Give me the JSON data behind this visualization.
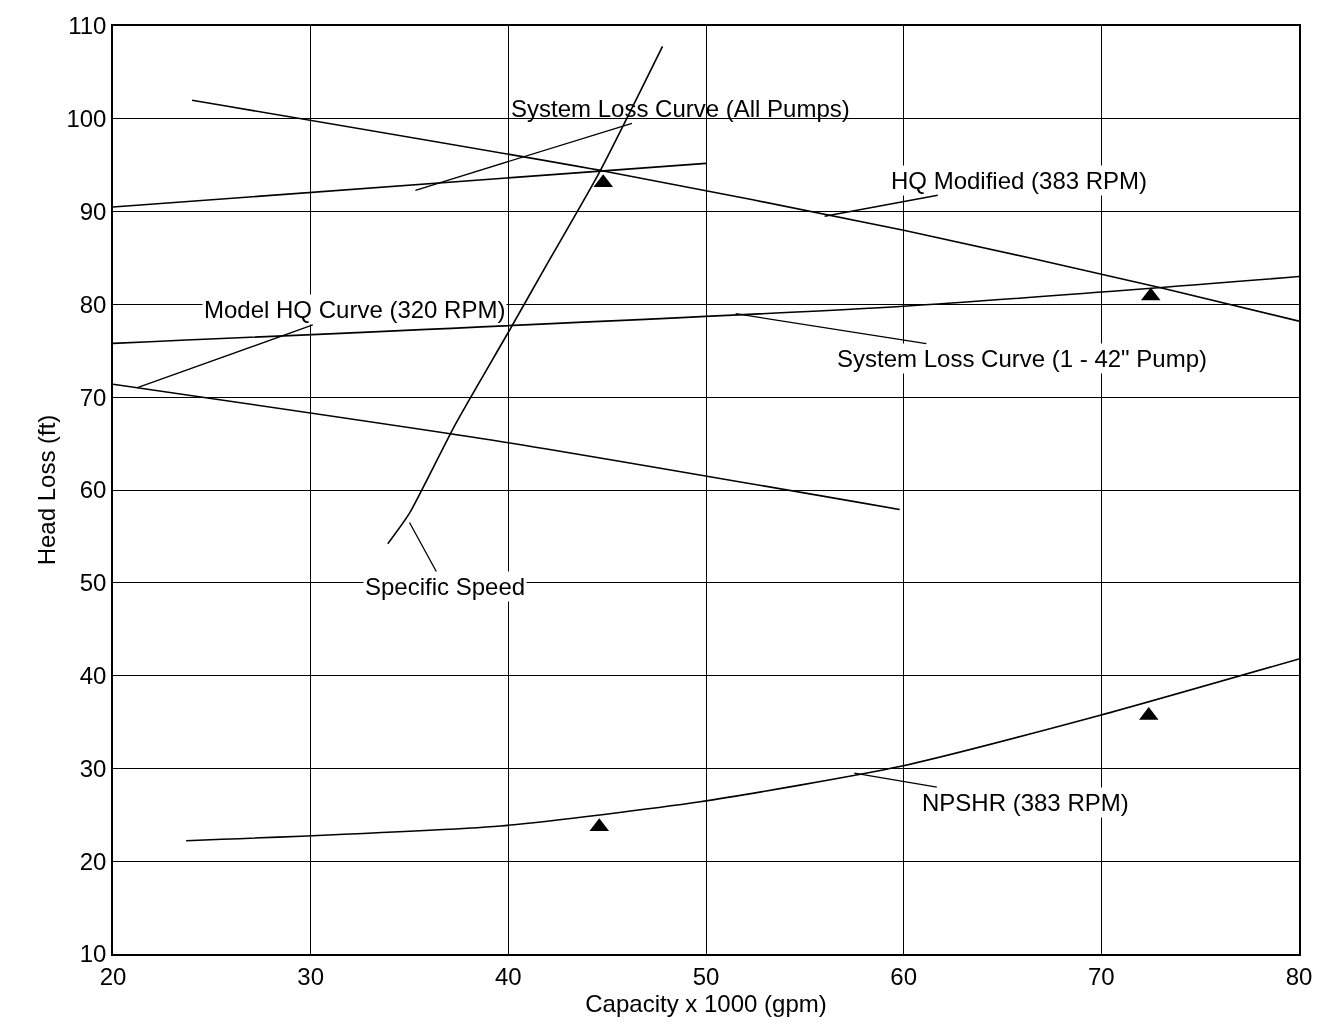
{
  "chart_data": {
    "type": "line",
    "xlabel": "Capacity x 1000 (gpm)",
    "ylabel": "Head Loss (ft)",
    "xlim": [
      20,
      80
    ],
    "ylim": [
      10,
      110
    ],
    "xticks": [
      20,
      30,
      40,
      50,
      60,
      70,
      80
    ],
    "yticks": [
      10,
      20,
      30,
      40,
      50,
      60,
      70,
      80,
      90,
      100,
      110
    ],
    "grid": true,
    "marker": "none",
    "line_style": "solid",
    "series": [
      {
        "color": "#000000",
        "x": [
          20,
          50
        ],
        "values": [
          90.5,
          95.2
        ]
      },
      {
        "color": "#000000",
        "x": [
          24,
          45,
          60,
          73,
          80
        ],
        "values": [
          102,
          94.3,
          88,
          81.8,
          78.2
        ]
      },
      {
        "color": "#000000",
        "x": [
          20,
          60,
          80
        ],
        "values": [
          75.8,
          79.8,
          83
        ]
      },
      {
        "color": "#000000",
        "x": [
          20,
          40,
          59.8
        ],
        "values": [
          71.4,
          65.1,
          57.9
        ]
      },
      {
        "color": "#000000",
        "x": [
          33.9,
          35,
          37.3,
          40,
          42,
          44.6,
          47.8
        ],
        "values": [
          54.2,
          57.5,
          67,
          77,
          84.5,
          94.2,
          107.8
        ]
      },
      {
        "color": "#000000",
        "x": [
          23.7,
          39.6,
          49.7,
          59.8,
          69.9,
          80
        ],
        "values": [
          22.2,
          23.8,
          26.4,
          30.2,
          35.7,
          41.8
        ]
      },
      {
        "type": "scatter",
        "marker": "triangle",
        "color": "#000000",
        "x": [
          44.8,
          72.5,
          72.4,
          44.6
        ],
        "values": [
          93.1,
          80.9,
          35.7,
          23.7
        ]
      }
    ],
    "annotations": [
      {
        "text": "System Loss Curve (All Pumps)",
        "x": 35.3,
        "y": 92.3
      },
      {
        "text": "HQ Modified (383 RPM)",
        "x": 56,
        "y": 89.5
      },
      {
        "text": "System Loss Curve (1 - 42\" Pump)",
        "x": 51.5,
        "y": 79
      },
      {
        "text": "Model HQ Curve (320 RPM)",
        "x": 21.2,
        "y": 71
      },
      {
        "text": "Specific Speed",
        "x": 35,
        "y": 56.5
      },
      {
        "text": "NPSHR (383 RPM)",
        "x": 57.5,
        "y": 29.5
      }
    ]
  }
}
